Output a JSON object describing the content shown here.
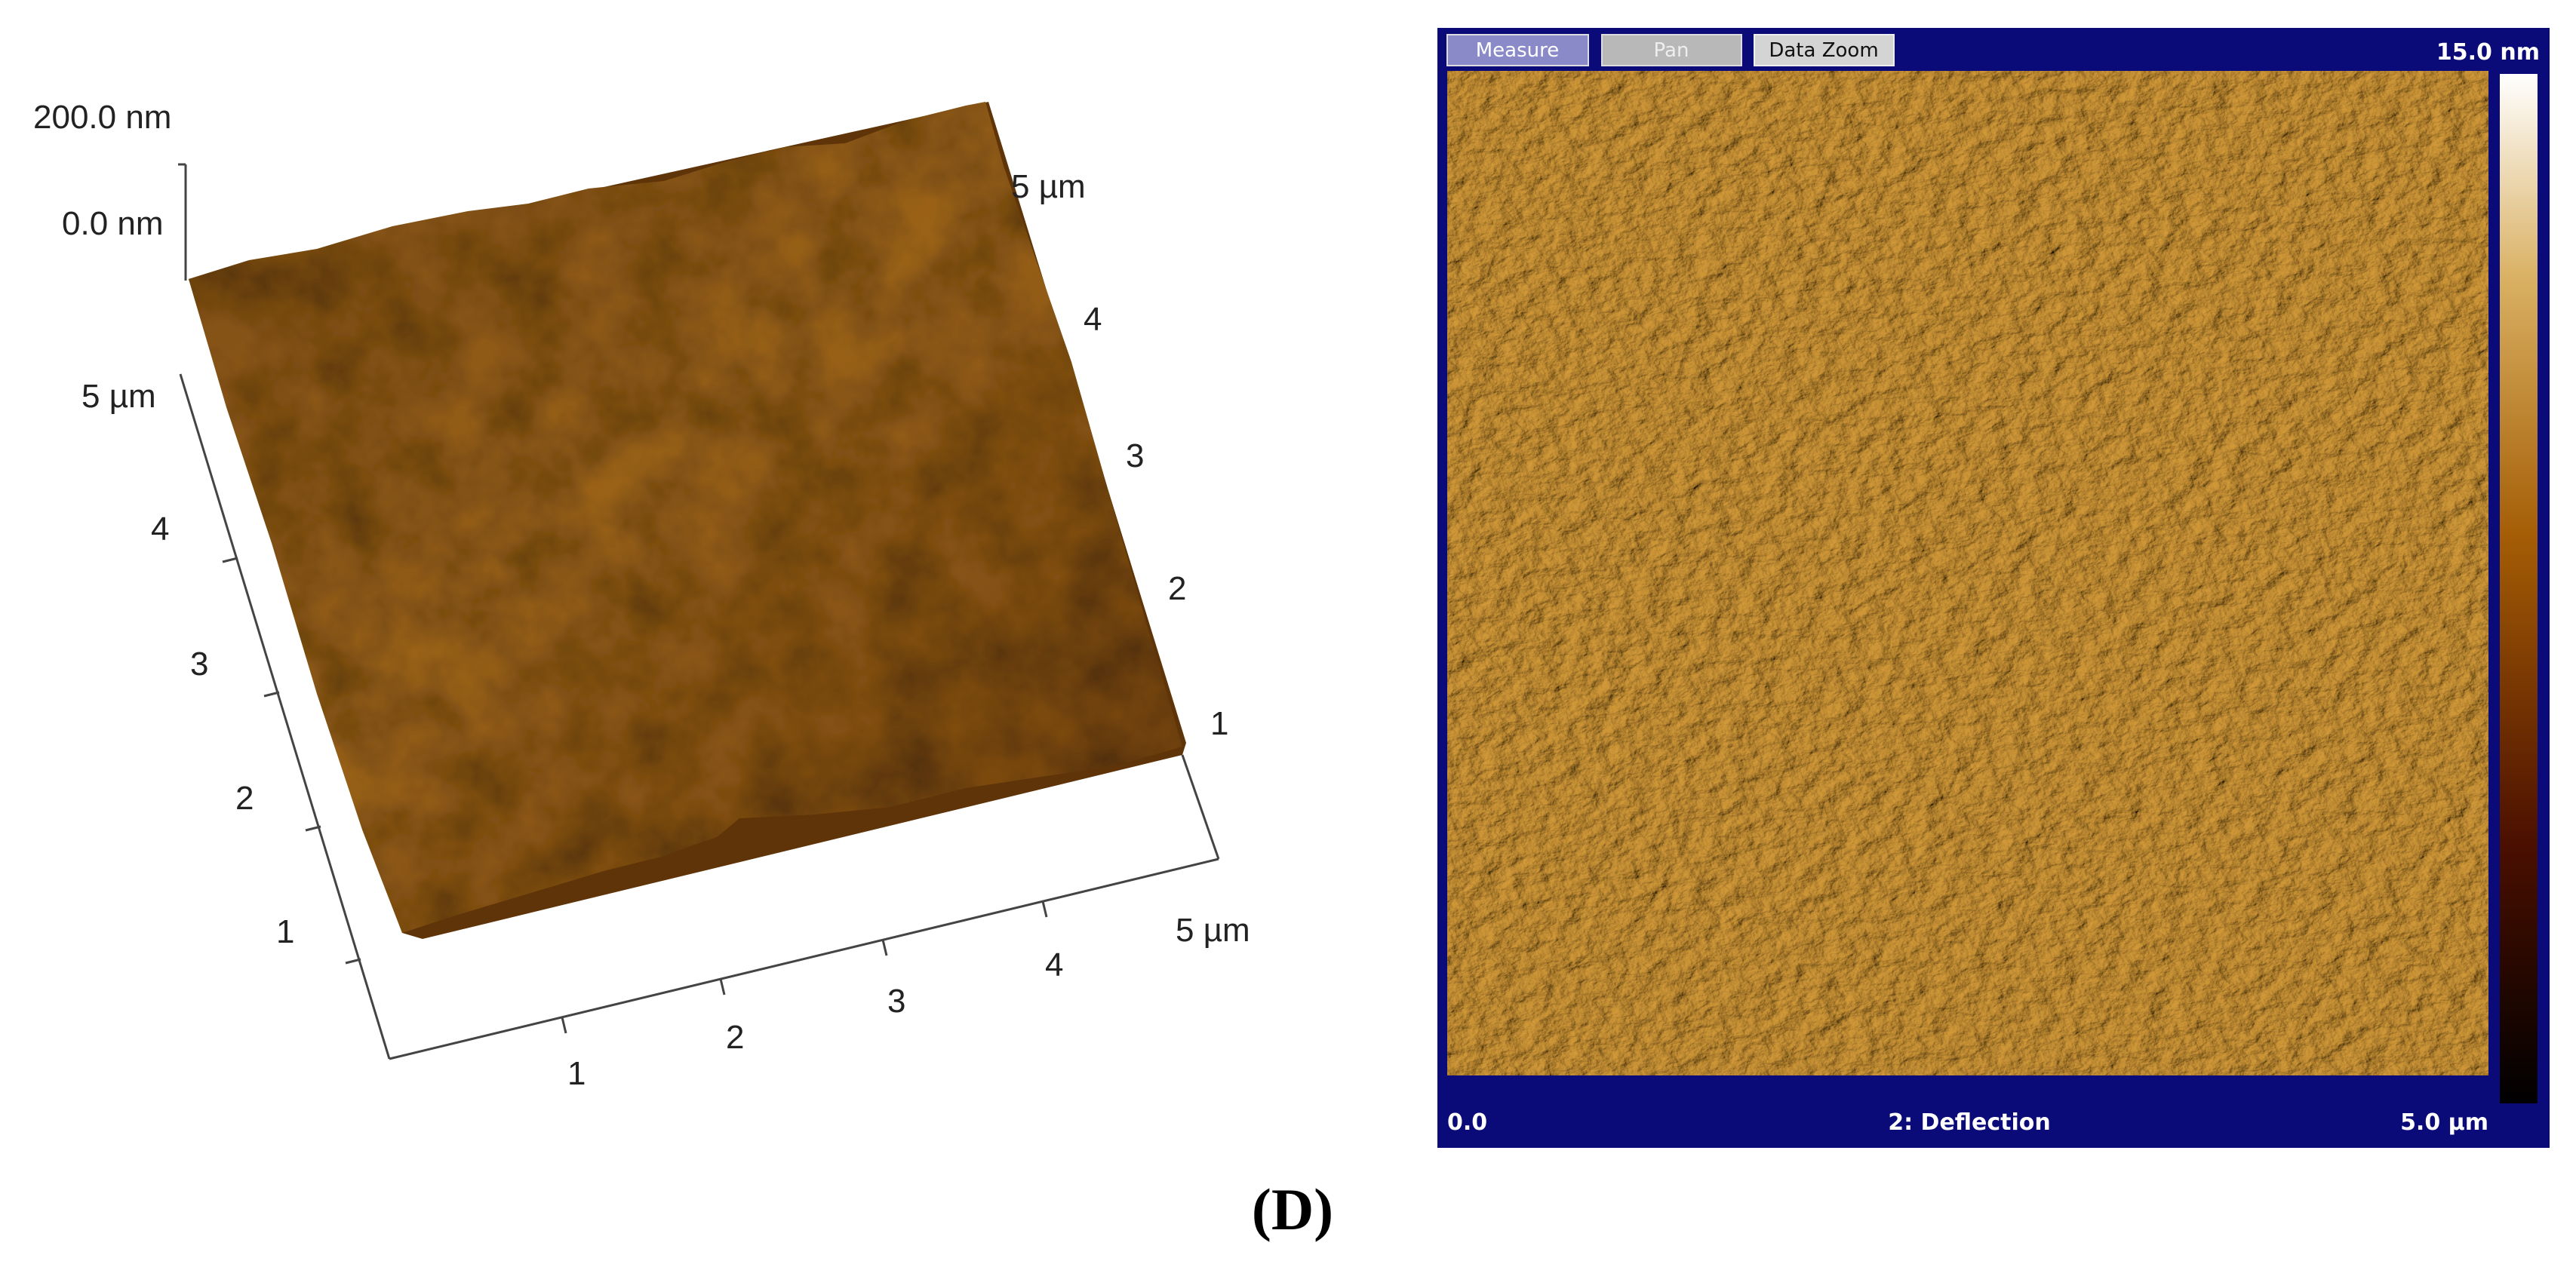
{
  "left_panel": {
    "z_labels": [
      "200.0 nm",
      "0.0 nm"
    ],
    "left_axis_labels": [
      "5 µm",
      "4",
      "3",
      "2",
      "1"
    ],
    "bottom_axis_labels": [
      "1",
      "2",
      "3",
      "4",
      "5 µm"
    ],
    "right_axis_labels": [
      "5 µm",
      "4",
      "3",
      "2",
      "1"
    ]
  },
  "right_panel": {
    "buttons": [
      "Measure",
      "Pan",
      "Data Zoom"
    ],
    "scale_max": "15.0 nm",
    "x_start": "0.0",
    "channel": "2: Deflection",
    "x_end": "5.0 µm"
  },
  "caption": "(D)"
}
